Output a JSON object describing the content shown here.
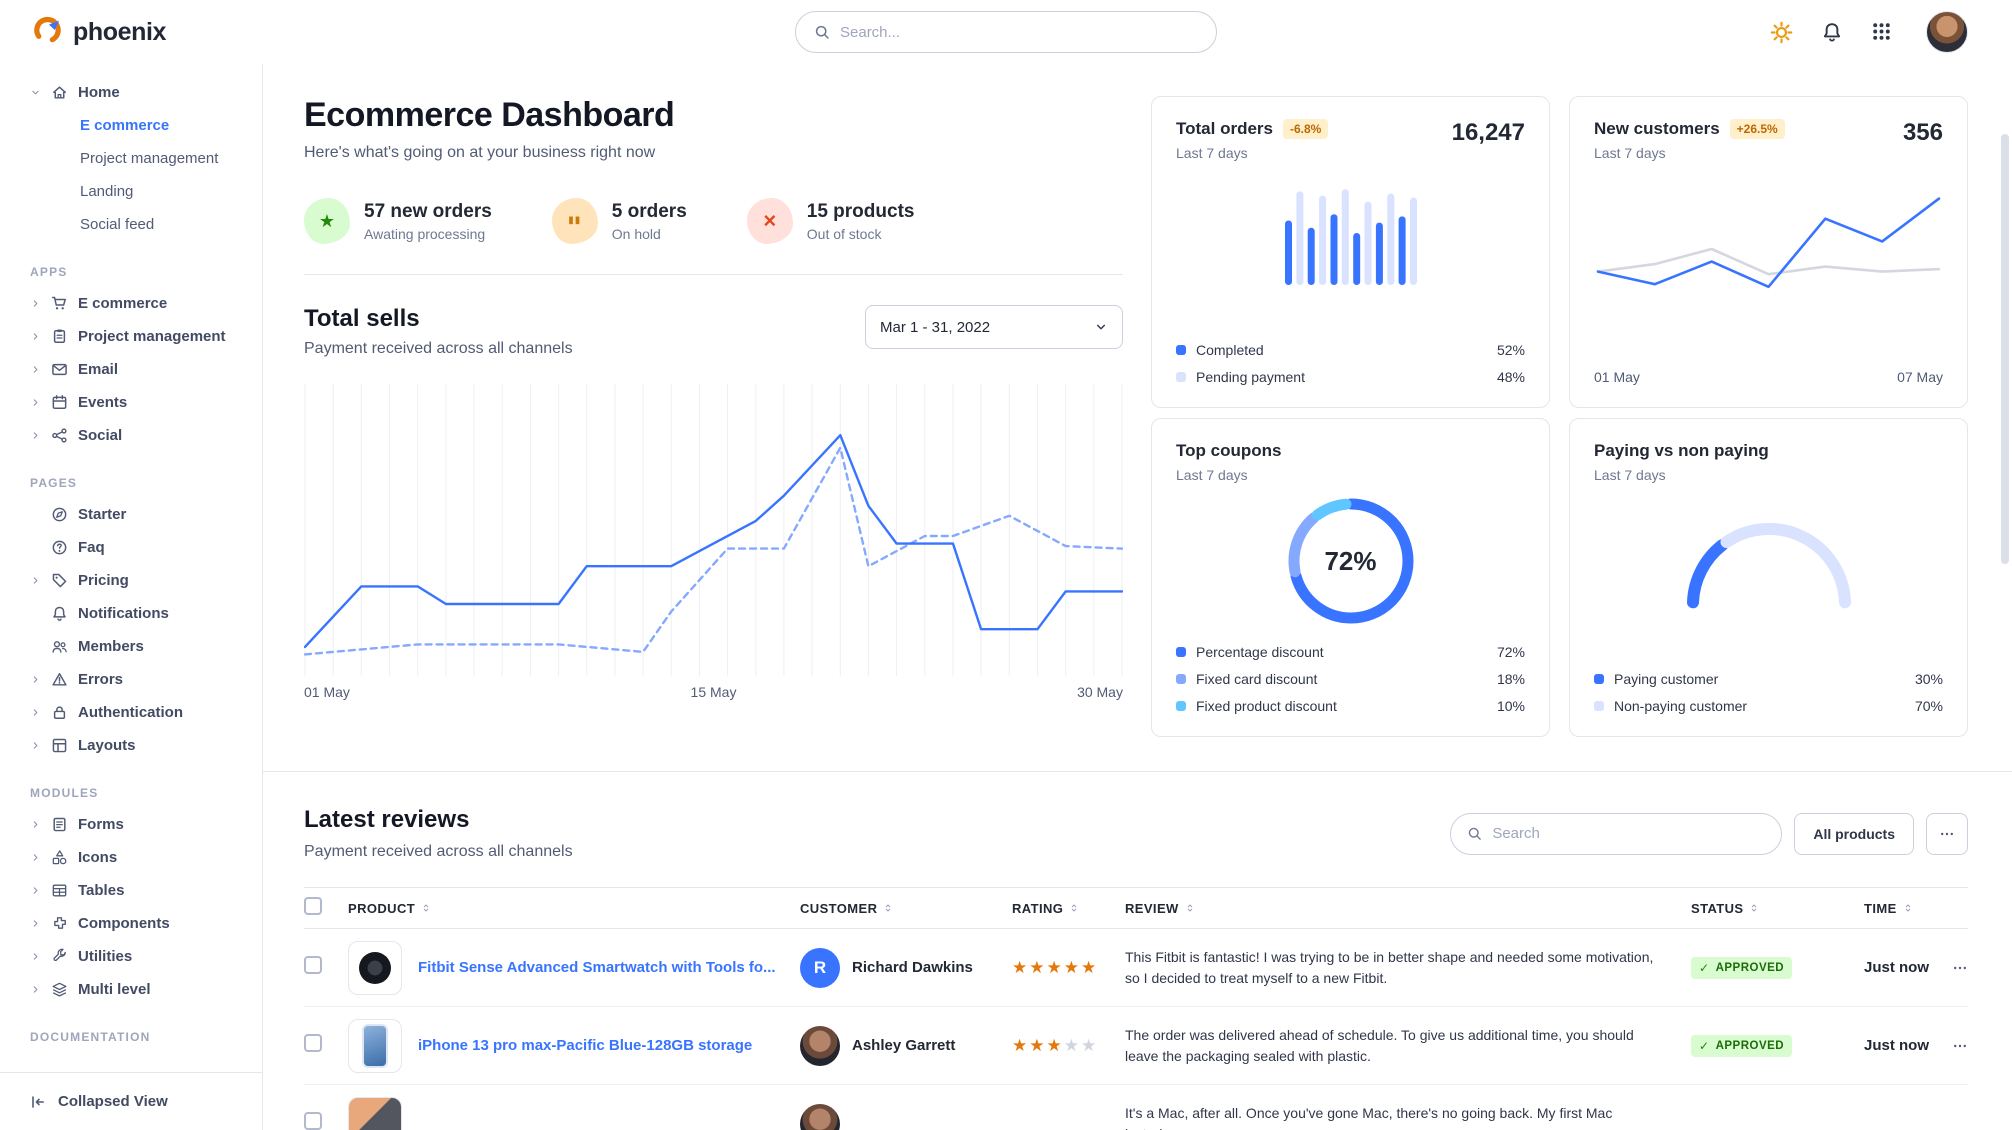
{
  "navbar": {
    "brand": "phoenix",
    "search_placeholder": "Search..."
  },
  "colors": {
    "primary": "#3874ff",
    "link": "#3874ff",
    "star": "#e5780b",
    "warning_badge_bg": "#ffefca",
    "warning_badge_text": "#bc6803",
    "success_badge_bg": "#d9fbd0",
    "success_badge_text": "#1c6c09"
  },
  "sidebar": {
    "home": {
      "label": "Home",
      "children": [
        {
          "label": "E commerce",
          "active": true
        },
        {
          "label": "Project management",
          "active": false
        },
        {
          "label": "Landing",
          "active": false
        },
        {
          "label": "Social feed",
          "active": false
        }
      ]
    },
    "sections": [
      {
        "title": "APPS",
        "items": [
          {
            "label": "E commerce",
            "icon": "cart-icon",
            "expandable": true
          },
          {
            "label": "Project management",
            "icon": "clipboard-icon",
            "expandable": true
          },
          {
            "label": "Email",
            "icon": "envelope-icon",
            "expandable": true
          },
          {
            "label": "Events",
            "icon": "calendar-icon",
            "expandable": true
          },
          {
            "label": "Social",
            "icon": "share-nodes-icon",
            "expandable": true
          }
        ]
      },
      {
        "title": "PAGES",
        "items": [
          {
            "label": "Starter",
            "icon": "compass-icon",
            "expandable": false
          },
          {
            "label": "Faq",
            "icon": "question-circle-icon",
            "expandable": false
          },
          {
            "label": "Pricing",
            "icon": "tag-icon",
            "expandable": true
          },
          {
            "label": "Notifications",
            "icon": "bell-icon",
            "expandable": false
          },
          {
            "label": "Members",
            "icon": "users-icon",
            "expandable": false
          },
          {
            "label": "Errors",
            "icon": "warning-icon",
            "expandable": true
          },
          {
            "label": "Authentication",
            "icon": "lock-icon",
            "expandable": true
          },
          {
            "label": "Layouts",
            "icon": "layout-icon",
            "expandable": true
          }
        ]
      },
      {
        "title": "MODULES",
        "items": [
          {
            "label": "Forms",
            "icon": "form-icon",
            "expandable": true
          },
          {
            "label": "Icons",
            "icon": "shapes-icon",
            "expandable": true
          },
          {
            "label": "Tables",
            "icon": "table-icon",
            "expandable": true
          },
          {
            "label": "Components",
            "icon": "puzzle-icon",
            "expandable": true
          },
          {
            "label": "Utilities",
            "icon": "wrench-icon",
            "expandable": true
          },
          {
            "label": "Multi level",
            "icon": "layers-icon",
            "expandable": true
          }
        ]
      },
      {
        "title": "DOCUMENTATION",
        "items": []
      }
    ],
    "collapse_label": "Collapsed View"
  },
  "page": {
    "title": "Ecommerce Dashboard",
    "subtitle": "Here's what's going on at your business right now",
    "stats": [
      {
        "value": "57 new orders",
        "caption": "Awating processing",
        "icon": "star-icon",
        "color": "green"
      },
      {
        "value": "5 orders",
        "caption": "On hold",
        "icon": "pause-icon",
        "color": "orange"
      },
      {
        "value": "15 products",
        "caption": "Out of stock",
        "icon": "x-icon",
        "color": "red"
      }
    ]
  },
  "total_sells": {
    "title": "Total sells",
    "subtitle": "Payment received across all channels",
    "date_range": "Mar 1 - 31, 2022"
  },
  "cards": {
    "total_orders": {
      "title": "Total orders",
      "badge": "-6.8%",
      "value": "16,247",
      "period": "Last 7 days",
      "legend": [
        {
          "label": "Completed",
          "value": "52%",
          "color": "#3874ff"
        },
        {
          "label": "Pending payment",
          "value": "48%",
          "color": "#d9e2ff"
        }
      ]
    },
    "new_customers": {
      "title": "New customers",
      "badge": "+26.5%",
      "value": "356",
      "period": "Last 7 days",
      "x_start": "01 May",
      "x_end": "07 May"
    },
    "top_coupons": {
      "title": "Top coupons",
      "period": "Last 7 days",
      "center_value": "72%",
      "legend": [
        {
          "label": "Percentage discount",
          "value": "72%",
          "color": "#3874ff"
        },
        {
          "label": "Fixed card discount",
          "value": "18%",
          "color": "#85a9ff"
        },
        {
          "label": "Fixed product discount",
          "value": "10%",
          "color": "#60c6ff"
        }
      ]
    },
    "paying": {
      "title": "Paying vs non paying",
      "period": "Last 7 days",
      "legend": [
        {
          "label": "Paying customer",
          "value": "30%",
          "color": "#3874ff"
        },
        {
          "label": "Non-paying customer",
          "value": "70%",
          "color": "#d9e2ff"
        }
      ]
    }
  },
  "reviews": {
    "title": "Latest reviews",
    "subtitle": "Payment received across all channels",
    "search_placeholder": "Search",
    "filter_label": "All products",
    "columns": [
      "PRODUCT",
      "CUSTOMER",
      "RATING",
      "REVIEW",
      "STATUS",
      "TIME"
    ],
    "rows": [
      {
        "product": "Fitbit Sense Advanced Smartwatch with Tools fo...",
        "thumb": "smartwatch",
        "customer": "Richard Dawkins",
        "avatar_type": "letter",
        "avatar_initial": "R",
        "rating": 5,
        "review": "This Fitbit is fantastic! I was trying to be in better shape and needed some motivation, so I decided to treat myself to a new Fitbit.",
        "status": "APPROVED",
        "time": "Just now"
      },
      {
        "product": "iPhone 13 pro max-Pacific Blue-128GB storage",
        "thumb": "iphone",
        "customer": "Ashley Garrett",
        "avatar_type": "photo",
        "avatar_initial": "A",
        "rating": 3,
        "review": "The order was delivered ahead of schedule. To give us additional time, you should leave the packaging sealed with plastic.",
        "status": "APPROVED",
        "time": "Just now"
      },
      {
        "product": "",
        "thumb": "macbook",
        "customer": "",
        "avatar_type": "photo",
        "avatar_initial": "",
        "rating": 0,
        "review": "It's a Mac, after all. Once you've gone Mac, there's no going back. My first Mac lasted...",
        "status": "",
        "time": ""
      }
    ]
  },
  "chart_data": [
    {
      "name": "total_sells",
      "type": "line",
      "title": "Total sells",
      "x_ticks": [
        "01 May",
        "15 May",
        "30 May"
      ],
      "xlim": [
        0,
        29
      ],
      "ylim": [
        0,
        100
      ],
      "grid": "vertical",
      "series": [
        {
          "name": "current",
          "style": "solid",
          "color": "#3874ff",
          "points": [
            [
              0,
              6
            ],
            [
              2,
              30
            ],
            [
              4,
              30
            ],
            [
              5,
              23
            ],
            [
              9,
              23
            ],
            [
              10,
              38
            ],
            [
              13,
              38
            ],
            [
              14,
              44
            ],
            [
              16,
              56
            ],
            [
              17,
              66
            ],
            [
              19,
              90
            ],
            [
              20,
              62
            ],
            [
              21,
              47
            ],
            [
              23,
              47
            ],
            [
              24,
              13
            ],
            [
              26,
              13
            ],
            [
              27,
              28
            ],
            [
              29,
              28
            ]
          ]
        },
        {
          "name": "previous",
          "style": "dashed",
          "color": "#85a9ff",
          "points": [
            [
              0,
              3
            ],
            [
              4,
              7
            ],
            [
              9,
              7
            ],
            [
              12,
              4
            ],
            [
              13,
              20
            ],
            [
              15,
              45
            ],
            [
              17,
              45
            ],
            [
              19,
              85
            ],
            [
              20,
              38
            ],
            [
              22,
              50
            ],
            [
              23,
              50
            ],
            [
              25,
              58
            ],
            [
              27,
              46
            ],
            [
              29,
              45
            ]
          ]
        }
      ]
    },
    {
      "name": "total_orders",
      "type": "bar",
      "values": [
        62,
        90,
        55,
        86,
        68,
        92,
        50,
        80,
        60,
        88,
        66,
        84
      ],
      "ylim": [
        0,
        100
      ],
      "colors": [
        "#3874ff",
        "#d9e2ff"
      ]
    },
    {
      "name": "new_customers",
      "type": "line",
      "xlim": [
        0,
        6
      ],
      "ylim": [
        0,
        100
      ],
      "series": [
        {
          "name": "new customers",
          "color": "#3874ff",
          "points": [
            [
              0,
              36
            ],
            [
              1,
              26
            ],
            [
              2,
              44
            ],
            [
              3,
              24
            ],
            [
              4,
              78
            ],
            [
              5,
              60
            ],
            [
              6,
              94
            ]
          ]
        },
        {
          "name": "previous period",
          "color": "#d4d7e0",
          "points": [
            [
              0,
              36
            ],
            [
              1,
              42
            ],
            [
              2,
              54
            ],
            [
              3,
              34
            ],
            [
              4,
              40
            ],
            [
              5,
              36
            ],
            [
              6,
              38
            ]
          ]
        }
      ]
    },
    {
      "name": "top_coupons",
      "type": "donut",
      "center_label": "72%",
      "slices": [
        {
          "label": "Percentage discount",
          "value": 72,
          "color": "#3874ff"
        },
        {
          "label": "Fixed card discount",
          "value": 18,
          "color": "#85a9ff"
        },
        {
          "label": "Fixed product discount",
          "value": 10,
          "color": "#60c6ff"
        }
      ]
    },
    {
      "name": "paying_gauge",
      "type": "gauge",
      "slices": [
        {
          "label": "Paying customer",
          "value": 30,
          "color": "#3874ff"
        },
        {
          "label": "Non-paying customer",
          "value": 70,
          "color": "#d9e2ff"
        }
      ]
    }
  ]
}
